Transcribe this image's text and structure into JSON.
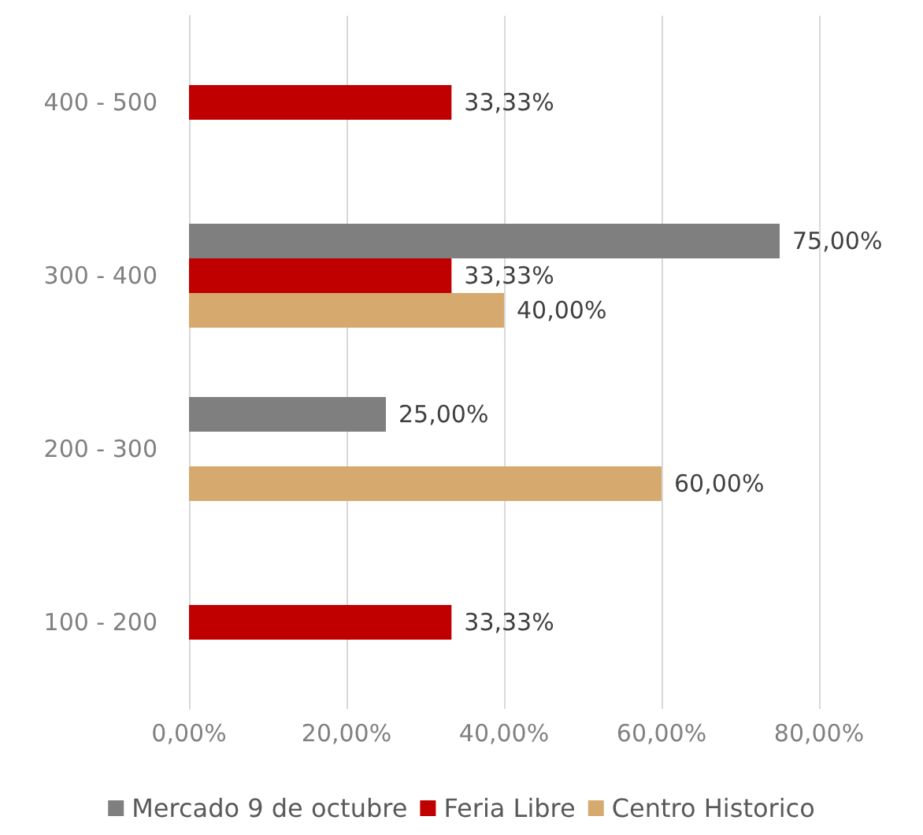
{
  "chart_data": {
    "type": "bar",
    "orientation": "horizontal",
    "categories": [
      "400 - 500",
      "300 - 400",
      "200 - 300",
      "100 - 200"
    ],
    "series": [
      {
        "name": "Mercado 9 de octubre",
        "color": "#7f7f7f",
        "values": [
          null,
          75,
          25,
          null
        ],
        "value_labels": [
          null,
          "75,00%",
          "25,00%",
          null
        ]
      },
      {
        "name": "Feria Libre",
        "color": "#c00000",
        "values": [
          33.33,
          33.33,
          null,
          33.33
        ],
        "value_labels": [
          "33,33%",
          "33,33%",
          null,
          "33,33%"
        ]
      },
      {
        "name": "Centro Historico",
        "color": "#d6a96e",
        "values": [
          null,
          40,
          60,
          null
        ],
        "value_labels": [
          null,
          "40,00%",
          "60,00%",
          null
        ]
      }
    ],
    "xlim": [
      0,
      80
    ],
    "xticks": [
      {
        "value": 0,
        "label": "0,00%"
      },
      {
        "value": 20,
        "label": "20,00%"
      },
      {
        "value": 40,
        "label": "40,00%"
      },
      {
        "value": 60,
        "label": "60,00%"
      },
      {
        "value": 80,
        "label": "80,00%"
      }
    ],
    "grid": "x",
    "legend": "bottom"
  }
}
